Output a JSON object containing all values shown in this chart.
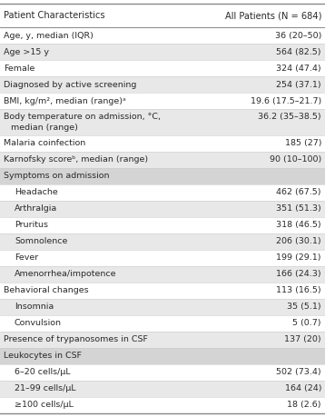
{
  "title_left": "Patient Characteristics",
  "title_right": "All Patients (N = 684)",
  "rows": [
    {
      "label": "Age, y, median (IQR)",
      "value": "36 (20–50)",
      "indent": 0,
      "header": false,
      "shaded": false,
      "multiline": false
    },
    {
      "label": "Age >15 y",
      "value": "564 (82.5)",
      "indent": 0,
      "header": false,
      "shaded": true,
      "multiline": false
    },
    {
      "label": "Female",
      "value": "324 (47.4)",
      "indent": 0,
      "header": false,
      "shaded": false,
      "multiline": false
    },
    {
      "label": "Diagnosed by active screening",
      "value": "254 (37.1)",
      "indent": 0,
      "header": false,
      "shaded": true,
      "multiline": false
    },
    {
      "label": "BMI, kg/m², median (range)ᵃ",
      "value": "19.6 (17.5–21.7)",
      "indent": 0,
      "header": false,
      "shaded": false,
      "multiline": false
    },
    {
      "label": "Body temperature on admission, °C,",
      "label2": "   median (range)",
      "value": "36.2 (35–38.5)",
      "indent": 0,
      "header": false,
      "shaded": true,
      "multiline": true
    },
    {
      "label": "Malaria coinfection",
      "value": "185 (27)",
      "indent": 0,
      "header": false,
      "shaded": false,
      "multiline": false
    },
    {
      "label": "Karnofsky scoreᵇ, median (range)",
      "value": "90 (10–100)",
      "indent": 0,
      "header": false,
      "shaded": true,
      "multiline": false
    },
    {
      "label": "Symptoms on admission",
      "value": "",
      "indent": 0,
      "header": true,
      "shaded": false,
      "multiline": false
    },
    {
      "label": "Headache",
      "value": "462 (67.5)",
      "indent": 1,
      "header": false,
      "shaded": false,
      "multiline": false
    },
    {
      "label": "Arthralgia",
      "value": "351 (51.3)",
      "indent": 1,
      "header": false,
      "shaded": true,
      "multiline": false
    },
    {
      "label": "Pruritus",
      "value": "318 (46.5)",
      "indent": 1,
      "header": false,
      "shaded": false,
      "multiline": false
    },
    {
      "label": "Somnolence",
      "value": "206 (30.1)",
      "indent": 1,
      "header": false,
      "shaded": true,
      "multiline": false
    },
    {
      "label": "Fever",
      "value": "199 (29.1)",
      "indent": 1,
      "header": false,
      "shaded": false,
      "multiline": false
    },
    {
      "label": "Amenorrhea/impotence",
      "value": "166 (24.3)",
      "indent": 1,
      "header": false,
      "shaded": true,
      "multiline": false
    },
    {
      "label": "Behavioral changes",
      "value": "113 (16.5)",
      "indent": 0,
      "header": false,
      "shaded": false,
      "multiline": false
    },
    {
      "label": "Insomnia",
      "value": "35 (5.1)",
      "indent": 1,
      "header": false,
      "shaded": true,
      "multiline": false
    },
    {
      "label": "Convulsion",
      "value": "5 (0.7)",
      "indent": 1,
      "header": false,
      "shaded": false,
      "multiline": false
    },
    {
      "label": "Presence of trypanosomes in CSF",
      "value": "137 (20)",
      "indent": 0,
      "header": false,
      "shaded": true,
      "multiline": false
    },
    {
      "label": "Leukocytes in CSF",
      "value": "",
      "indent": 0,
      "header": true,
      "shaded": false,
      "multiline": false
    },
    {
      "label": "6–20 cells/μL",
      "value": "502 (73.4)",
      "indent": 1,
      "header": false,
      "shaded": false,
      "multiline": false
    },
    {
      "label": "21–99 cells/μL",
      "value": "164 (24)",
      "indent": 1,
      "header": false,
      "shaded": true,
      "multiline": false
    },
    {
      "label": "≥100 cells/μL",
      "value": "18 (2.6)",
      "indent": 1,
      "header": false,
      "shaded": false,
      "multiline": false
    }
  ],
  "color_white": "#ffffff",
  "color_light_gray": "#e8e8e8",
  "color_header": "#d4d4d4",
  "color_border": "#888888",
  "color_text": "#2a2a2a",
  "font_size": 6.8,
  "fig_width": 3.58,
  "fig_height": 4.59,
  "dpi": 100
}
